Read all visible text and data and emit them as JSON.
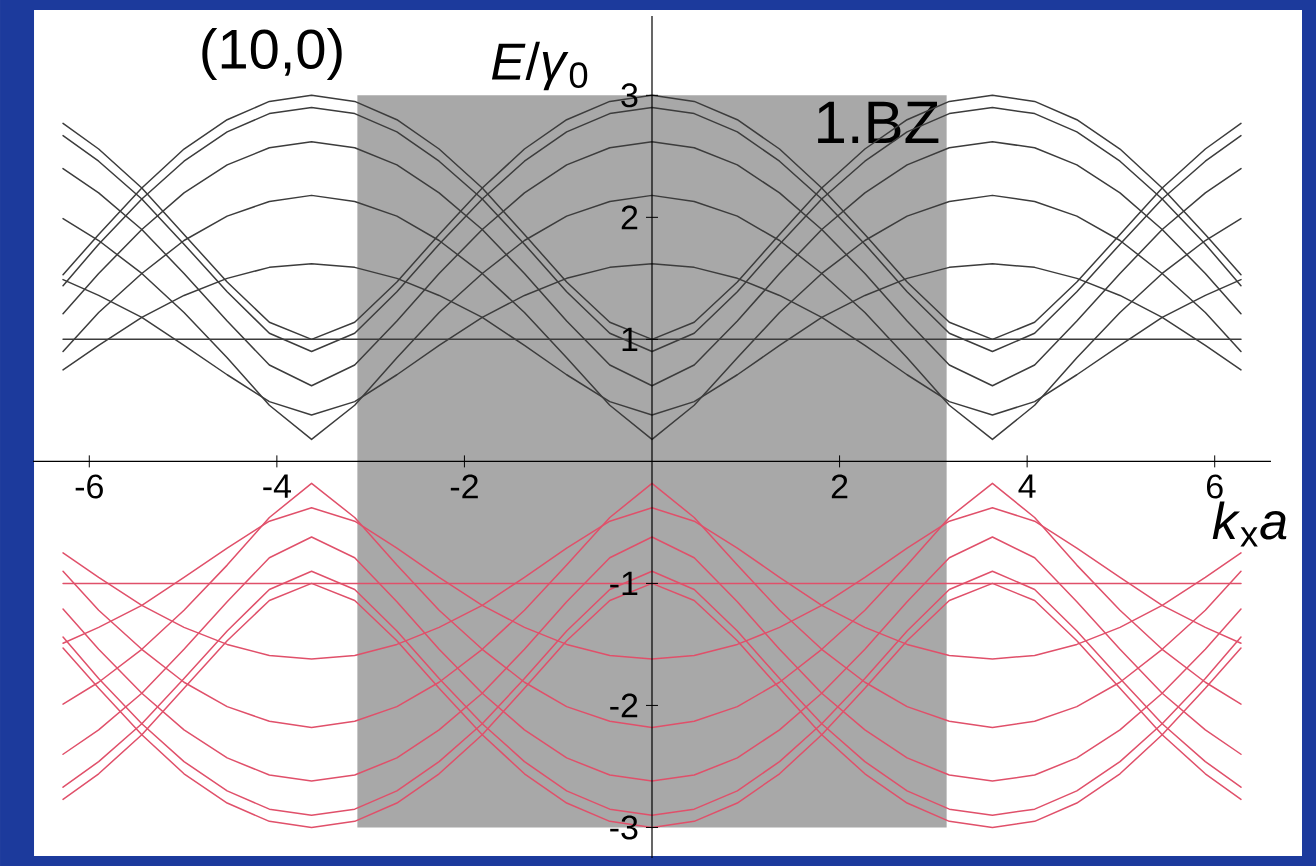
{
  "chart_data": {
    "type": "line",
    "title": "(10,0)",
    "xlabel": "*k*$_{x}$*a*",
    "ylabel": "*E*/*γ*$_{0}$",
    "x": [
      -6.28,
      -5.9,
      -5.44,
      -4.99,
      -4.53,
      -4.08,
      -3.63,
      -3.17,
      -2.72,
      -2.27,
      -1.81,
      -1.36,
      -0.91,
      -0.45,
      0,
      0.45,
      0.91,
      1.36,
      1.81,
      2.27,
      2.72,
      3.17,
      3.63,
      4.08,
      4.53,
      4.99,
      5.44,
      5.9,
      6.28
    ],
    "xlim": [
      -6.6,
      6.6
    ],
    "ylim": [
      -3.25,
      3.65
    ],
    "xticks": [
      -6,
      -4,
      -2,
      2,
      4,
      6
    ],
    "yticks": [
      -3,
      -2,
      -1,
      1,
      2,
      3
    ],
    "marker": "none",
    "line_style": "solid",
    "bands": [
      {
        "axis": "x",
        "from": -3.1416,
        "to": 3.1416,
        "label": "1.BZ",
        "color": "#a8a8a8"
      }
    ],
    "series": [
      {
        "color": "#3c3c3c",
        "values": [
          2.77,
          2.56,
          2.24,
          1.86,
          1.47,
          1.14,
          1.0,
          1.14,
          1.47,
          1.86,
          2.24,
          2.56,
          2.8,
          2.95,
          3.0,
          2.95,
          2.8,
          2.56,
          2.24,
          1.86,
          1.47,
          1.14,
          1.0,
          1.14,
          1.47,
          1.86,
          2.24,
          2.56,
          2.77
        ]
      },
      {
        "color": "#3c3c3c",
        "values": [
          1.53,
          1.86,
          2.24,
          2.56,
          2.8,
          2.95,
          3.0,
          2.95,
          2.8,
          2.56,
          2.24,
          1.86,
          1.47,
          1.14,
          1.0,
          1.14,
          1.47,
          1.86,
          2.24,
          2.56,
          2.8,
          2.95,
          3.0,
          2.95,
          2.8,
          2.56,
          2.24,
          1.86,
          1.53
        ]
      },
      {
        "color": "#3c3c3c",
        "values": [
          2.67,
          2.46,
          2.15,
          1.78,
          1.39,
          1.05,
          0.9,
          1.05,
          1.39,
          1.78,
          2.15,
          2.46,
          2.7,
          2.85,
          2.9,
          2.85,
          2.7,
          2.46,
          2.15,
          1.78,
          1.39,
          1.05,
          0.9,
          1.05,
          1.39,
          1.78,
          2.15,
          2.46,
          2.67
        ]
      },
      {
        "color": "#3c3c3c",
        "values": [
          1.44,
          1.78,
          2.15,
          2.46,
          2.7,
          2.85,
          2.9,
          2.85,
          2.7,
          2.46,
          2.15,
          1.78,
          1.39,
          1.05,
          0.9,
          1.05,
          1.39,
          1.78,
          2.15,
          2.46,
          2.7,
          2.85,
          2.9,
          2.85,
          2.7,
          2.46,
          2.15,
          1.78,
          1.44
        ]
      },
      {
        "color": "#3c3c3c",
        "values": [
          2.4,
          2.2,
          1.9,
          1.54,
          1.15,
          0.79,
          0.62,
          0.79,
          1.15,
          1.54,
          1.9,
          2.2,
          2.43,
          2.57,
          2.62,
          2.57,
          2.43,
          2.2,
          1.9,
          1.54,
          1.15,
          0.79,
          0.62,
          0.79,
          1.15,
          1.54,
          1.9,
          2.2,
          2.4
        ]
      },
      {
        "color": "#3c3c3c",
        "values": [
          1.21,
          1.54,
          1.9,
          2.2,
          2.43,
          2.57,
          2.62,
          2.57,
          2.43,
          2.2,
          1.9,
          1.54,
          1.15,
          0.79,
          0.62,
          0.79,
          1.15,
          1.54,
          1.9,
          2.2,
          2.43,
          2.57,
          2.62,
          2.57,
          2.43,
          2.2,
          1.9,
          1.54,
          1.21
        ]
      },
      {
        "color": "#3c3c3c",
        "values": [
          1.99,
          1.81,
          1.54,
          1.22,
          0.85,
          0.46,
          0.18,
          0.46,
          0.85,
          1.22,
          1.54,
          1.81,
          2.01,
          2.13,
          2.18,
          2.13,
          2.01,
          1.81,
          1.54,
          1.22,
          0.85,
          0.46,
          0.18,
          0.46,
          0.85,
          1.22,
          1.54,
          1.81,
          1.99
        ]
      },
      {
        "color": "#3c3c3c",
        "values": [
          0.9,
          1.22,
          1.54,
          1.81,
          2.01,
          2.13,
          2.18,
          2.13,
          2.01,
          1.81,
          1.54,
          1.22,
          0.85,
          0.46,
          0.18,
          0.46,
          0.85,
          1.22,
          1.54,
          1.81,
          2.01,
          2.13,
          2.18,
          2.13,
          2.01,
          1.81,
          1.54,
          1.22,
          0.9
        ]
      },
      {
        "color": "#3c3c3c",
        "values": [
          1.49,
          1.36,
          1.18,
          0.95,
          0.71,
          0.49,
          0.38,
          0.49,
          0.71,
          0.95,
          1.18,
          1.36,
          1.5,
          1.59,
          1.62,
          1.59,
          1.5,
          1.36,
          1.18,
          0.95,
          0.71,
          0.49,
          0.38,
          0.49,
          0.71,
          0.95,
          1.18,
          1.36,
          1.49
        ]
      },
      {
        "color": "#3c3c3c",
        "values": [
          0.75,
          0.95,
          1.18,
          1.36,
          1.5,
          1.59,
          1.62,
          1.59,
          1.5,
          1.36,
          1.18,
          0.95,
          0.71,
          0.49,
          0.38,
          0.49,
          0.71,
          0.95,
          1.18,
          1.36,
          1.5,
          1.59,
          1.62,
          1.59,
          1.5,
          1.36,
          1.18,
          0.95,
          0.75
        ]
      },
      {
        "color": "#3c3c3c",
        "values": [
          1,
          1,
          1,
          1,
          1,
          1,
          1,
          1,
          1,
          1,
          1,
          1,
          1,
          1,
          1,
          1,
          1,
          1,
          1,
          1,
          1,
          1,
          1,
          1,
          1,
          1,
          1,
          1,
          1
        ]
      },
      {
        "color": "#e0506a",
        "values": [
          -2.77,
          -2.56,
          -2.24,
          -1.86,
          -1.47,
          -1.14,
          -1.0,
          -1.14,
          -1.47,
          -1.86,
          -2.24,
          -2.56,
          -2.8,
          -2.95,
          -3.0,
          -2.95,
          -2.8,
          -2.56,
          -2.24,
          -1.86,
          -1.47,
          -1.14,
          -1.0,
          -1.14,
          -1.47,
          -1.86,
          -2.24,
          -2.56,
          -2.77
        ]
      },
      {
        "color": "#e0506a",
        "values": [
          -1.53,
          -1.86,
          -2.24,
          -2.56,
          -2.8,
          -2.95,
          -3.0,
          -2.95,
          -2.8,
          -2.56,
          -2.24,
          -1.86,
          -1.47,
          -1.14,
          -1.0,
          -1.14,
          -1.47,
          -1.86,
          -2.24,
          -2.56,
          -2.8,
          -2.95,
          -3.0,
          -2.95,
          -2.8,
          -2.56,
          -2.24,
          -1.86,
          -1.53
        ]
      },
      {
        "color": "#e0506a",
        "values": [
          -2.67,
          -2.46,
          -2.15,
          -1.78,
          -1.39,
          -1.05,
          -0.9,
          -1.05,
          -1.39,
          -1.78,
          -2.15,
          -2.46,
          -2.7,
          -2.85,
          -2.9,
          -2.85,
          -2.7,
          -2.46,
          -2.15,
          -1.78,
          -1.39,
          -1.05,
          -0.9,
          -1.05,
          -1.39,
          -1.78,
          -2.15,
          -2.46,
          -2.67
        ]
      },
      {
        "color": "#e0506a",
        "values": [
          -1.44,
          -1.78,
          -2.15,
          -2.46,
          -2.7,
          -2.85,
          -2.9,
          -2.85,
          -2.7,
          -2.46,
          -2.15,
          -1.78,
          -1.39,
          -1.05,
          -0.9,
          -1.05,
          -1.39,
          -1.78,
          -2.15,
          -2.46,
          -2.7,
          -2.85,
          -2.9,
          -2.85,
          -2.7,
          -2.46,
          -2.15,
          -1.78,
          -1.44
        ]
      },
      {
        "color": "#e0506a",
        "values": [
          -2.4,
          -2.2,
          -1.9,
          -1.54,
          -1.15,
          -0.79,
          -0.62,
          -0.79,
          -1.15,
          -1.54,
          -1.9,
          -2.2,
          -2.43,
          -2.57,
          -2.62,
          -2.57,
          -2.43,
          -2.2,
          -1.9,
          -1.54,
          -1.15,
          -0.79,
          -0.62,
          -0.79,
          -1.15,
          -1.54,
          -1.9,
          -2.2,
          -2.4
        ]
      },
      {
        "color": "#e0506a",
        "values": [
          -1.21,
          -1.54,
          -1.9,
          -2.2,
          -2.43,
          -2.57,
          -2.62,
          -2.57,
          -2.43,
          -2.2,
          -1.9,
          -1.54,
          -1.15,
          -0.79,
          -0.62,
          -0.79,
          -1.15,
          -1.54,
          -1.9,
          -2.2,
          -2.43,
          -2.57,
          -2.62,
          -2.57,
          -2.43,
          -2.2,
          -1.9,
          -1.54,
          -1.21
        ]
      },
      {
        "color": "#e0506a",
        "values": [
          -1.99,
          -1.81,
          -1.54,
          -1.22,
          -0.85,
          -0.46,
          -0.18,
          -0.46,
          -0.85,
          -1.22,
          -1.54,
          -1.81,
          -2.01,
          -2.13,
          -2.18,
          -2.13,
          -2.01,
          -1.81,
          -1.54,
          -1.22,
          -0.85,
          -0.46,
          -0.18,
          -0.46,
          -0.85,
          -1.22,
          -1.54,
          -1.81,
          -1.99
        ]
      },
      {
        "color": "#e0506a",
        "values": [
          -0.9,
          -1.22,
          -1.54,
          -1.81,
          -2.01,
          -2.13,
          -2.18,
          -2.13,
          -2.01,
          -1.81,
          -1.54,
          -1.22,
          -0.85,
          -0.46,
          -0.18,
          -0.46,
          -0.85,
          -1.22,
          -1.54,
          -1.81,
          -2.01,
          -2.13,
          -2.18,
          -2.13,
          -2.01,
          -1.81,
          -1.54,
          -1.22,
          -0.9
        ]
      },
      {
        "color": "#e0506a",
        "values": [
          -1.49,
          -1.36,
          -1.18,
          -0.95,
          -0.71,
          -0.49,
          -0.38,
          -0.49,
          -0.71,
          -0.95,
          -1.18,
          -1.36,
          -1.5,
          -1.59,
          -1.62,
          -1.59,
          -1.5,
          -1.36,
          -1.18,
          -0.95,
          -0.71,
          -0.49,
          -0.38,
          -0.49,
          -0.71,
          -0.95,
          -1.18,
          -1.36,
          -1.49
        ]
      },
      {
        "color": "#e0506a",
        "values": [
          -0.75,
          -0.95,
          -1.18,
          -1.36,
          -1.5,
          -1.59,
          -1.62,
          -1.59,
          -1.5,
          -1.36,
          -1.18,
          -0.95,
          -0.71,
          -0.49,
          -0.38,
          -0.49,
          -0.71,
          -0.95,
          -1.18,
          -1.36,
          -1.5,
          -1.59,
          -1.62,
          -1.59,
          -1.5,
          -1.36,
          -1.18,
          -0.95,
          -0.75
        ]
      },
      {
        "color": "#e0506a",
        "values": [
          -1,
          -1,
          -1,
          -1,
          -1,
          -1,
          -1,
          -1,
          -1,
          -1,
          -1,
          -1,
          -1,
          -1,
          -1,
          -1,
          -1,
          -1,
          -1,
          -1,
          -1,
          -1,
          -1,
          -1,
          -1,
          -1,
          -1,
          -1,
          -1
        ]
      }
    ]
  }
}
